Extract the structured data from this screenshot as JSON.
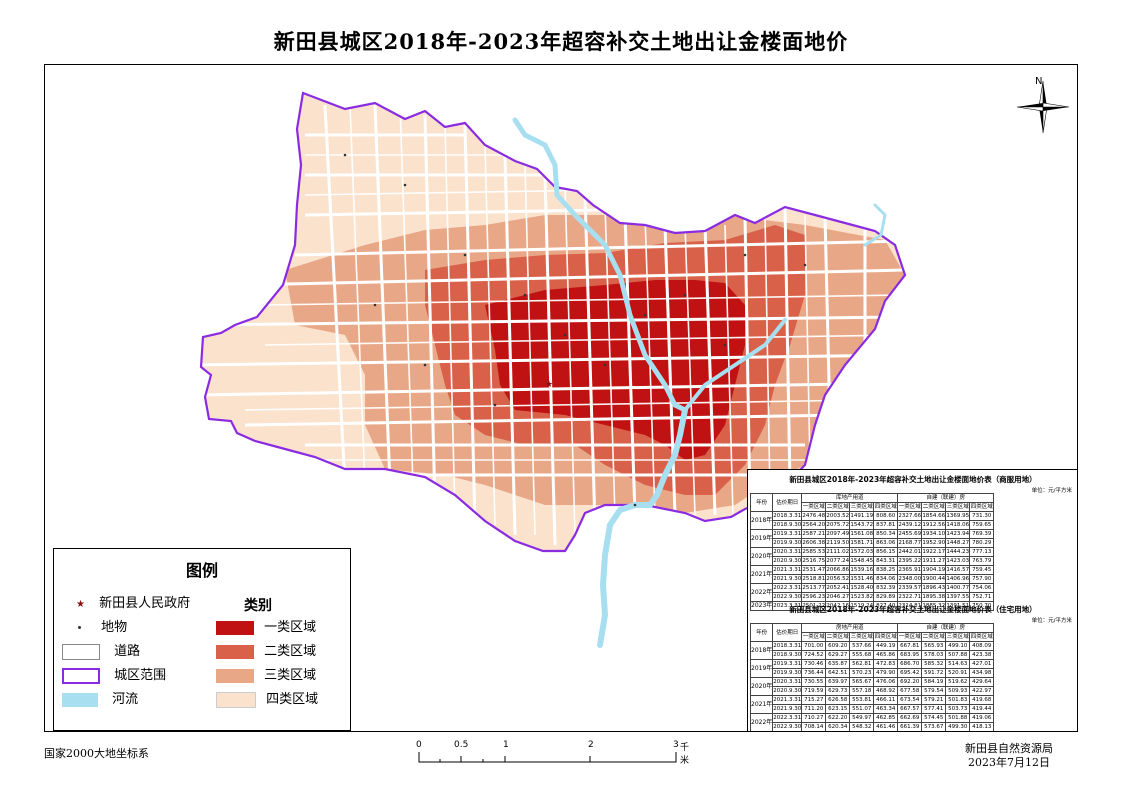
{
  "title": "新田县城区2018年-2023年超容补交土地出让金楼面地价",
  "compass": {
    "label": "N"
  },
  "legend": {
    "title": "图例",
    "category_title": "类别",
    "symbols": [
      {
        "label": "新田县人民政府",
        "icon": "star-icon",
        "color": "#8b1010"
      },
      {
        "label": "地物",
        "icon": "dot-icon",
        "color": "#333333"
      },
      {
        "label": "道路",
        "icon": "road-box",
        "color": "#ffffff"
      },
      {
        "label": "城区范围",
        "icon": "boundary-box",
        "color": "#8a2be2"
      },
      {
        "label": "河流",
        "icon": "river-box",
        "color": "#a8dff0"
      }
    ],
    "categories": [
      {
        "label": "一类区域",
        "color": "#c01212"
      },
      {
        "label": "二类区域",
        "color": "#d9614a"
      },
      {
        "label": "三类区域",
        "color": "#e8a888"
      },
      {
        "label": "四类区域",
        "color": "#fbe2cc"
      }
    ]
  },
  "tables": [
    {
      "caption": "新田县城区2018年-2023年超容补交土地出让金楼面地价表（商服用地）",
      "unit": "单位：元/平方米",
      "col_year": "年份",
      "col_date": "估价期日",
      "group1": "库地产用道",
      "group2": "自建（联建）房",
      "zones": [
        "一类区域",
        "二类区域",
        "三类区域",
        "四类区域"
      ],
      "rows": [
        {
          "year": "2018年",
          "date": "2018.3.31",
          "a": [
            "2476.48",
            "2003.52",
            "1491.19",
            "808.60"
          ],
          "b": [
            "2327.66",
            "1854.66",
            "1369.95",
            "731.30"
          ]
        },
        {
          "year": "",
          "date": "2018.9.30",
          "a": [
            "2564.20",
            "2075.72",
            "1543.72",
            "837.81"
          ],
          "b": [
            "2439.12",
            "1912.56",
            "1418.06",
            "759.65"
          ]
        },
        {
          "year": "2019年",
          "date": "2019.3.31",
          "a": [
            "2587.21",
            "2097.49",
            "1561.08",
            "850.34"
          ],
          "b": [
            "2455.69",
            "1934.10",
            "1423.94",
            "769.39"
          ]
        },
        {
          "year": "",
          "date": "2019.9.30",
          "a": [
            "2606.38",
            "2119.50",
            "1581.71",
            "863.06"
          ],
          "b": [
            "2168.77",
            "1952.90",
            "1448.27",
            "780.29"
          ]
        },
        {
          "year": "2020年",
          "date": "2020.3.31",
          "a": [
            "2585.53",
            "2111.02",
            "1572.03",
            "856.15"
          ],
          "b": [
            "2442.01",
            "1922.17",
            "1444.23",
            "777.13"
          ]
        },
        {
          "year": "",
          "date": "2020.9.30",
          "a": [
            "2516.75",
            "2077.24",
            "1548.45",
            "843.31"
          ],
          "b": [
            "2395.22",
            "1911.27",
            "1423.03",
            "763.79"
          ]
        },
        {
          "year": "2021年",
          "date": "2021.3.31",
          "a": [
            "2531.47",
            "2066.86",
            "1539.16",
            "838.25"
          ],
          "b": [
            "2365.91",
            "1904.19",
            "1416.57",
            "759.45"
          ]
        },
        {
          "year": "",
          "date": "2021.9.30",
          "a": [
            "2518.81",
            "2056.52",
            "1531.46",
            "834.06"
          ],
          "b": [
            "2348.00",
            "1900.44",
            "1406.96",
            "757.90"
          ]
        },
        {
          "year": "2022年",
          "date": "2022.3.31",
          "a": [
            "2513.77",
            "2052.41",
            "1528.40",
            "832.39"
          ],
          "b": [
            "2339.57",
            "1896.43",
            "1400.77",
            "754.06"
          ]
        },
        {
          "year": "",
          "date": "2022.9.30",
          "a": [
            "2596.23",
            "2046.27",
            "1523.82",
            "829.89"
          ],
          "b": [
            "2322.71",
            "1895.38",
            "1397.55",
            "752.71"
          ]
        },
        {
          "year": "2023年",
          "date": "2023.3.31",
          "a": [
            "2501.22",
            "2042.16",
            "1519.24",
            "827.40"
          ],
          "b": [
            "2314.81",
            "1885.32",
            "1391.51",
            "750.70"
          ]
        }
      ]
    },
    {
      "caption": "新田县城区2018年-2023年超容补交土地出让金楼面地价表（住宅用地）",
      "unit": "单位：元/平方米",
      "col_year": "年份",
      "col_date": "估价期日",
      "group1": "房地产用道",
      "group2": "自建（联建）房",
      "zones": [
        "一类区域",
        "二类区域",
        "三类区域",
        "四类区域"
      ],
      "rows": [
        {
          "year": "2018年",
          "date": "2018.3.31",
          "a": [
            "701.00",
            "609.20",
            "537.66",
            "449.19"
          ],
          "b": [
            "667.81",
            "565.93",
            "499.10",
            "408.09"
          ]
        },
        {
          "year": "",
          "date": "2018.9.30",
          "a": [
            "724.52",
            "629.27",
            "555.68",
            "465.86"
          ],
          "b": [
            "683.95",
            "578.03",
            "507.88",
            "423.38"
          ]
        },
        {
          "year": "2019年",
          "date": "2019.3.31",
          "a": [
            "730.46",
            "635.87",
            "562.81",
            "472.83"
          ],
          "b": [
            "686.70",
            "585.32",
            "514.63",
            "427.01"
          ]
        },
        {
          "year": "",
          "date": "2019.9.30",
          "a": [
            "736.44",
            "642.51",
            "570.23",
            "479.90"
          ],
          "b": [
            "695.42",
            "591.72",
            "520.91",
            "434.98"
          ]
        },
        {
          "year": "2020年",
          "date": "2020.3.31",
          "a": [
            "730.55",
            "639.97",
            "565.67",
            "476.06"
          ],
          "b": [
            "692.20",
            "584.19",
            "519.62",
            "429.64"
          ]
        },
        {
          "year": "",
          "date": "2020.9.30",
          "a": [
            "719.59",
            "629.73",
            "557.18",
            "468.92"
          ],
          "b": [
            "677.58",
            "579.54",
            "509.93",
            "422.97"
          ]
        },
        {
          "year": "2021年",
          "date": "2021.3.31",
          "a": [
            "715.27",
            "626.58",
            "553.81",
            "466.11"
          ],
          "b": [
            "673.54",
            "579.21",
            "501.83",
            "419.68"
          ]
        },
        {
          "year": "",
          "date": "2021.9.30",
          "a": [
            "711.20",
            "623.15",
            "551.07",
            "463.34"
          ],
          "b": [
            "667.57",
            "577.41",
            "503.73",
            "419.44"
          ]
        },
        {
          "year": "2022年",
          "date": "2022.3.31",
          "a": [
            "710.27",
            "622.20",
            "549.97",
            "462.85"
          ],
          "b": [
            "662.69",
            "574.45",
            "501.88",
            "419.06"
          ]
        },
        {
          "year": "",
          "date": "2022.9.30",
          "a": [
            "708.14",
            "620.34",
            "548.32",
            "461.46"
          ],
          "b": [
            "661.39",
            "573.67",
            "499.30",
            "418.13"
          ]
        },
        {
          "year": "2023年",
          "date": "2023.3.31",
          "a": [
            "706.73",
            "618.48",
            "546.67",
            "460.07"
          ],
          "b": [
            "656.64",
            "572.96",
            "497.58",
            "414.39"
          ]
        }
      ]
    }
  ],
  "scale": {
    "ticks": [
      "0",
      "0.5",
      "1",
      "2",
      "3"
    ],
    "unit": "千米"
  },
  "footer": {
    "crs": "国家2000大地坐标系",
    "org": "新田县自然资源局",
    "date": "2023年7月12日"
  }
}
